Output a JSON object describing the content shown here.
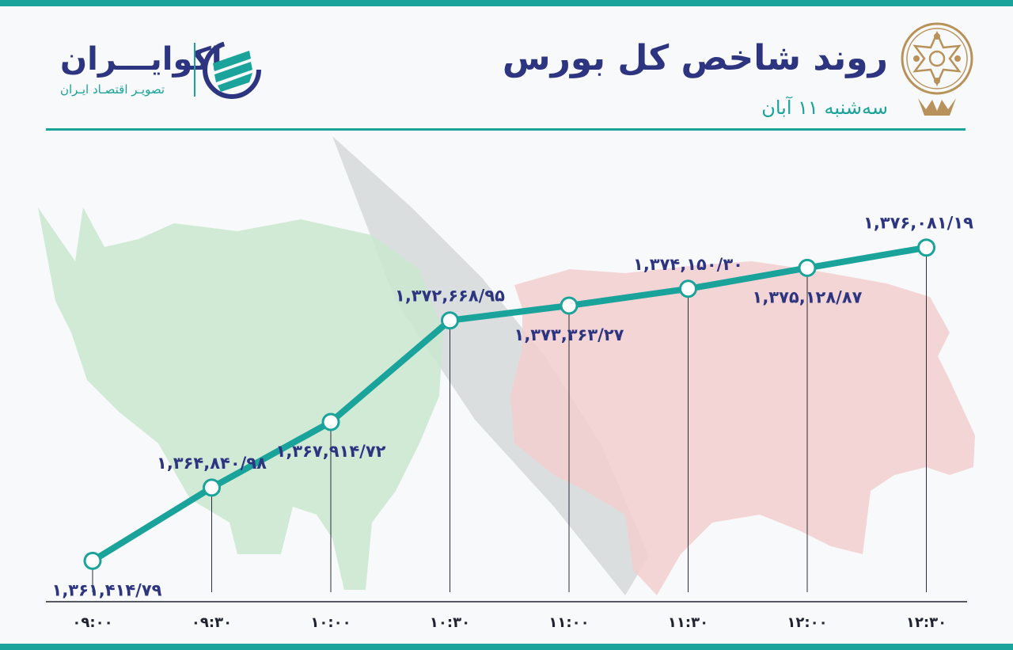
{
  "header": {
    "title": "روند شاخص کل بورس",
    "subtitle": "سه‌شنبه ۱۱ آبان"
  },
  "brand": {
    "name": "اکوایـــران",
    "tagline": "تصویـر اقتصـاد ایـران"
  },
  "colors": {
    "accent": "#1aa39a",
    "navy": "#2d3580",
    "bull_green": "#c9e8cf",
    "bear_red": "#f3cfcf",
    "arrow_gray": "#d2d4d6",
    "seal_gold": "#b8925a"
  },
  "icons": {
    "brand_logo": "ecoiran-logo-icon",
    "seal": "tehran-stock-exchange-seal-icon"
  },
  "chart_data": {
    "type": "line",
    "title": "روند شاخص کل بورس",
    "categories": [
      "۰۹:۰۰",
      "۰۹:۳۰",
      "۱۰:۰۰",
      "۱۰:۳۰",
      "۱۱:۰۰",
      "۱۱:۳۰",
      "۱۲:۰۰",
      "۱۲:۳۰"
    ],
    "values": [
      1361414.79,
      1364840.98,
      1367914.72,
      1372668.95,
      1373363.27,
      1374150.3,
      1375128.87,
      1376081.19
    ],
    "labels": [
      "۱,۳۶۱,۴۱۴/۷۹",
      "۱,۳۶۴,۸۴۰/۹۸",
      "۱,۳۶۷,۹۱۴/۷۲",
      "۱,۳۷۲,۶۶۸/۹۵",
      "۱,۳۷۳,۳۶۳/۲۷",
      "۱,۳۷۴,۱۵۰/۳۰",
      "۱,۳۷۵,۱۲۸/۸۷",
      "۱,۳۷۶,۰۸۱/۱۹"
    ],
    "label_positions": [
      "below",
      "above",
      "below",
      "above",
      "below",
      "above",
      "below",
      "above"
    ],
    "ylim": [
      1359500,
      1381000
    ],
    "grid": false,
    "legend": "none",
    "line_color": "#1aa39a"
  }
}
